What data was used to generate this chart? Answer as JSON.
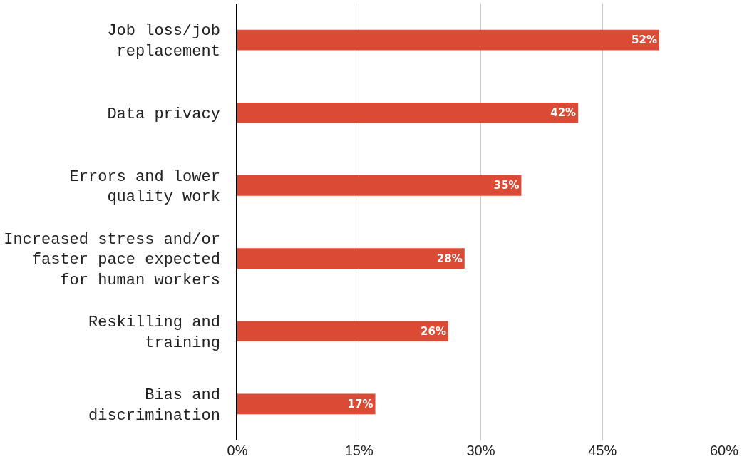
{
  "chart_data": {
    "type": "bar",
    "orientation": "horizontal",
    "categories": [
      "Job loss/job\nreplacement",
      "Data privacy",
      "Errors and lower\nquality work",
      "Increased stress and/or\nfaster pace expected\nfor human workers",
      "Reskilling and\ntraining",
      "Bias and\ndiscrimination"
    ],
    "values": [
      52,
      42,
      35,
      28,
      26,
      17
    ],
    "value_labels": [
      "52%",
      "42%",
      "35%",
      "28%",
      "26%",
      "17%"
    ],
    "color": "#db4a35",
    "xlim": [
      0,
      60
    ],
    "xticks": [
      {
        "value": 0,
        "label": "0%"
      },
      {
        "value": 15,
        "label": "15%"
      },
      {
        "value": 30,
        "label": "30%"
      },
      {
        "value": 45,
        "label": "45%"
      },
      {
        "value": 60,
        "label": "60%"
      }
    ],
    "grid": "x"
  }
}
